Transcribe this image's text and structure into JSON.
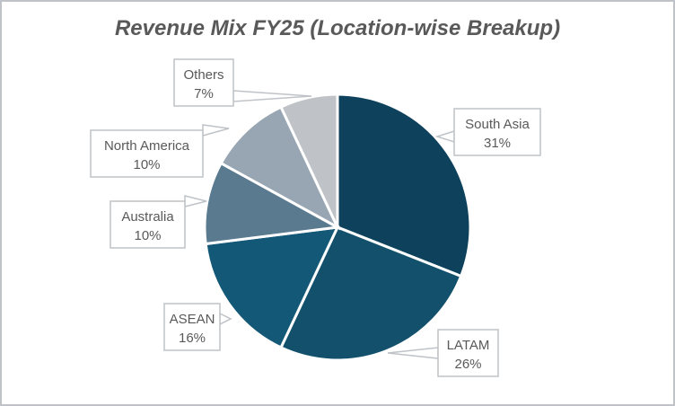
{
  "chart_data": {
    "type": "pie",
    "title": "Revenue Mix FY25 (Location-wise Breakup)",
    "categories": [
      "South Asia",
      "LATAM",
      "ASEAN",
      "Australia",
      "North America",
      "Others"
    ],
    "values": [
      31,
      26,
      16,
      10,
      10,
      7
    ],
    "unit": "%",
    "colors": [
      "#0e425c",
      "#12506b",
      "#145877",
      "#5a7a8f",
      "#98a6b3",
      "#bfc3c7"
    ],
    "labels": [
      {
        "name": "South Asia",
        "pct": "31%"
      },
      {
        "name": "LATAM",
        "pct": "26%"
      },
      {
        "name": "ASEAN",
        "pct": "16%"
      },
      {
        "name": "Australia",
        "pct": "10%"
      },
      {
        "name": "North America",
        "pct": "10%"
      },
      {
        "name": "Others",
        "pct": "7%"
      }
    ],
    "legend": "none (data callouts)",
    "start_angle": "12 o'clock, clockwise"
  }
}
